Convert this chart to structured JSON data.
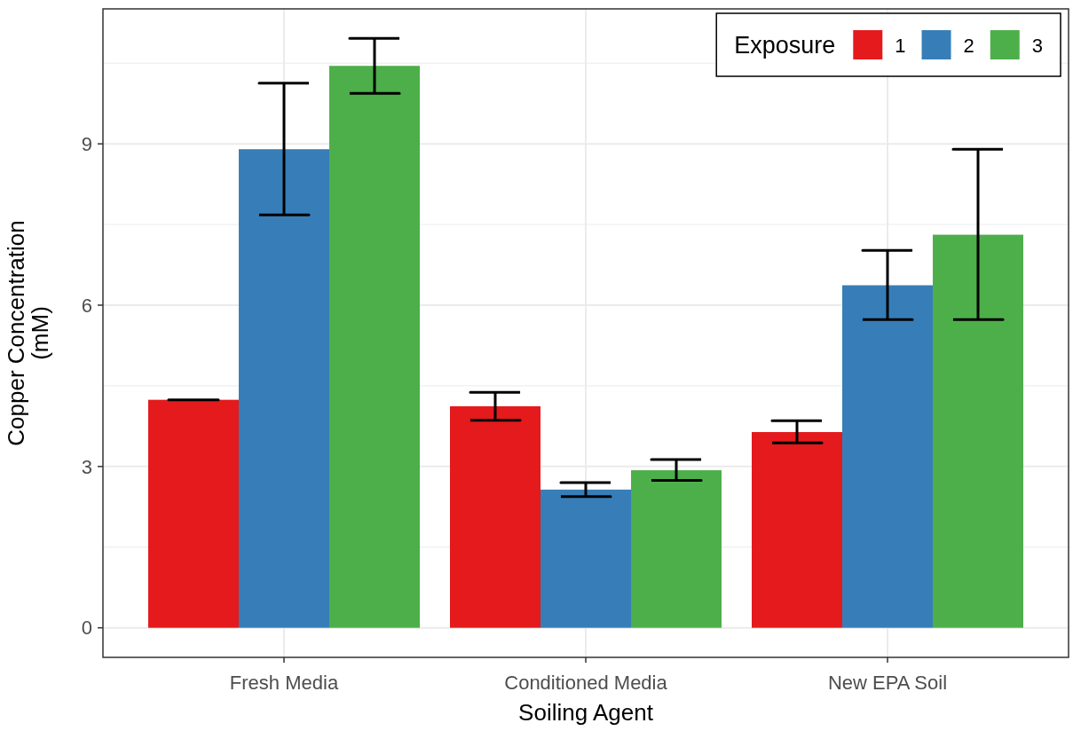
{
  "chart_data": {
    "type": "bar",
    "xlabel": "Soiling Agent",
    "ylabel": "Copper Concentration\n(mM)",
    "legend_title": "Exposure",
    "legend": "top right",
    "grid": true,
    "categories": [
      "Fresh Media",
      "Conditioned Media",
      "New EPA Soil"
    ],
    "ylim": [
      -0.55,
      11.51
    ],
    "yticks": [
      0,
      3,
      6,
      9
    ],
    "series": [
      {
        "name": "1",
        "color": "#e41a1c",
        "values": [
          4.24,
          4.12,
          3.64
        ],
        "errors": [
          0,
          [
            3.86,
            4.38
          ],
          [
            3.44,
            3.85
          ]
        ]
      },
      {
        "name": "2",
        "color": "#377eb8",
        "values": [
          8.9,
          2.57,
          6.37
        ],
        "errors": [
          [
            7.68,
            10.13
          ],
          [
            2.44,
            2.7
          ],
          [
            5.73,
            7.02
          ]
        ]
      },
      {
        "name": "3",
        "color": "#4daf4a",
        "values": [
          10.45,
          2.93,
          7.31
        ],
        "errors": [
          [
            9.94,
            10.96
          ],
          [
            2.74,
            3.13
          ],
          [
            5.73,
            8.9
          ]
        ]
      }
    ]
  }
}
